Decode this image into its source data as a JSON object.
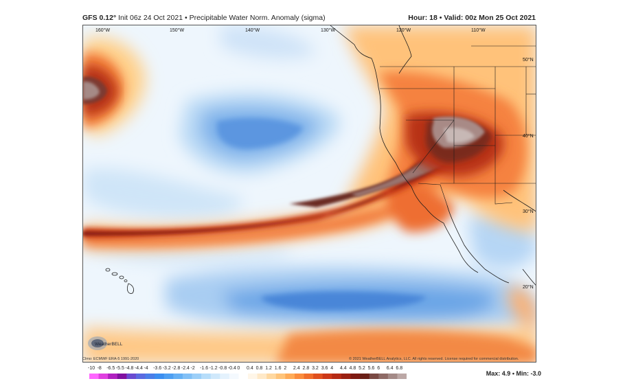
{
  "header": {
    "model": "GFS 0.12°",
    "init": "Init 06z 24 Oct 2021",
    "bullet": "•",
    "product": "Precipitable Water Norm. Anomaly (sigma)",
    "hour_label": "Hour: 18",
    "valid_label": "Valid: 00z Mon 25 Oct 2021"
  },
  "map": {
    "lon_labels": [
      "160°W",
      "150°W",
      "140°W",
      "130°W",
      "120°W",
      "110°W"
    ],
    "lat_labels": [
      "50°N",
      "40°N",
      "30°N",
      "20°N"
    ],
    "climo_note": "Clmo: ECMWF ERA-5 1991-2020",
    "copyright": "© 2021 WeatherBELL Analytics, LLC. All rights reserved. License required for commercial distribution.",
    "logo_text": "WeatherBELL"
  },
  "colorbar": {
    "labels": [
      "-10",
      "-8",
      "-6.5",
      "-5.5",
      "-4.8",
      "-4.4",
      "-4",
      "-3.6",
      "-3.2",
      "-2.8",
      "-2.4",
      "-2",
      "-1.6",
      "-1.2",
      "-0.8",
      "-0.4",
      "0",
      "0.4",
      "0.8",
      "1.2",
      "1.6",
      "2",
      "2.4",
      "2.8",
      "3.2",
      "3.6",
      "4",
      "4.4",
      "4.8",
      "5.2",
      "5.6",
      "6",
      "6.4",
      "6.8"
    ],
    "colors": [
      "#ff66ff",
      "#e040e0",
      "#b020c0",
      "#8010a0",
      "#6a4bd0",
      "#5a6ae0",
      "#4a7ee8",
      "#3b8ef0",
      "#4d9ff2",
      "#66b0f4",
      "#82c0f6",
      "#9ccff8",
      "#b6ddfa",
      "#cfe8fb",
      "#e4f2fd",
      "#f4f9fe",
      "#ffffff",
      "#fff6e8",
      "#ffe9c8",
      "#ffd8a0",
      "#ffc47a",
      "#ffab57",
      "#fb8c3c",
      "#f06d2a",
      "#e0501e",
      "#cc3818",
      "#b52a14",
      "#9a2012",
      "#7e1a12",
      "#6a2018",
      "#7a4a44",
      "#8e6a66",
      "#a48a87",
      "#bca8a6"
    ]
  },
  "stats": {
    "max_label": "Max: 4.9",
    "bullet": "•",
    "min_label": "Min: -3.0"
  }
}
